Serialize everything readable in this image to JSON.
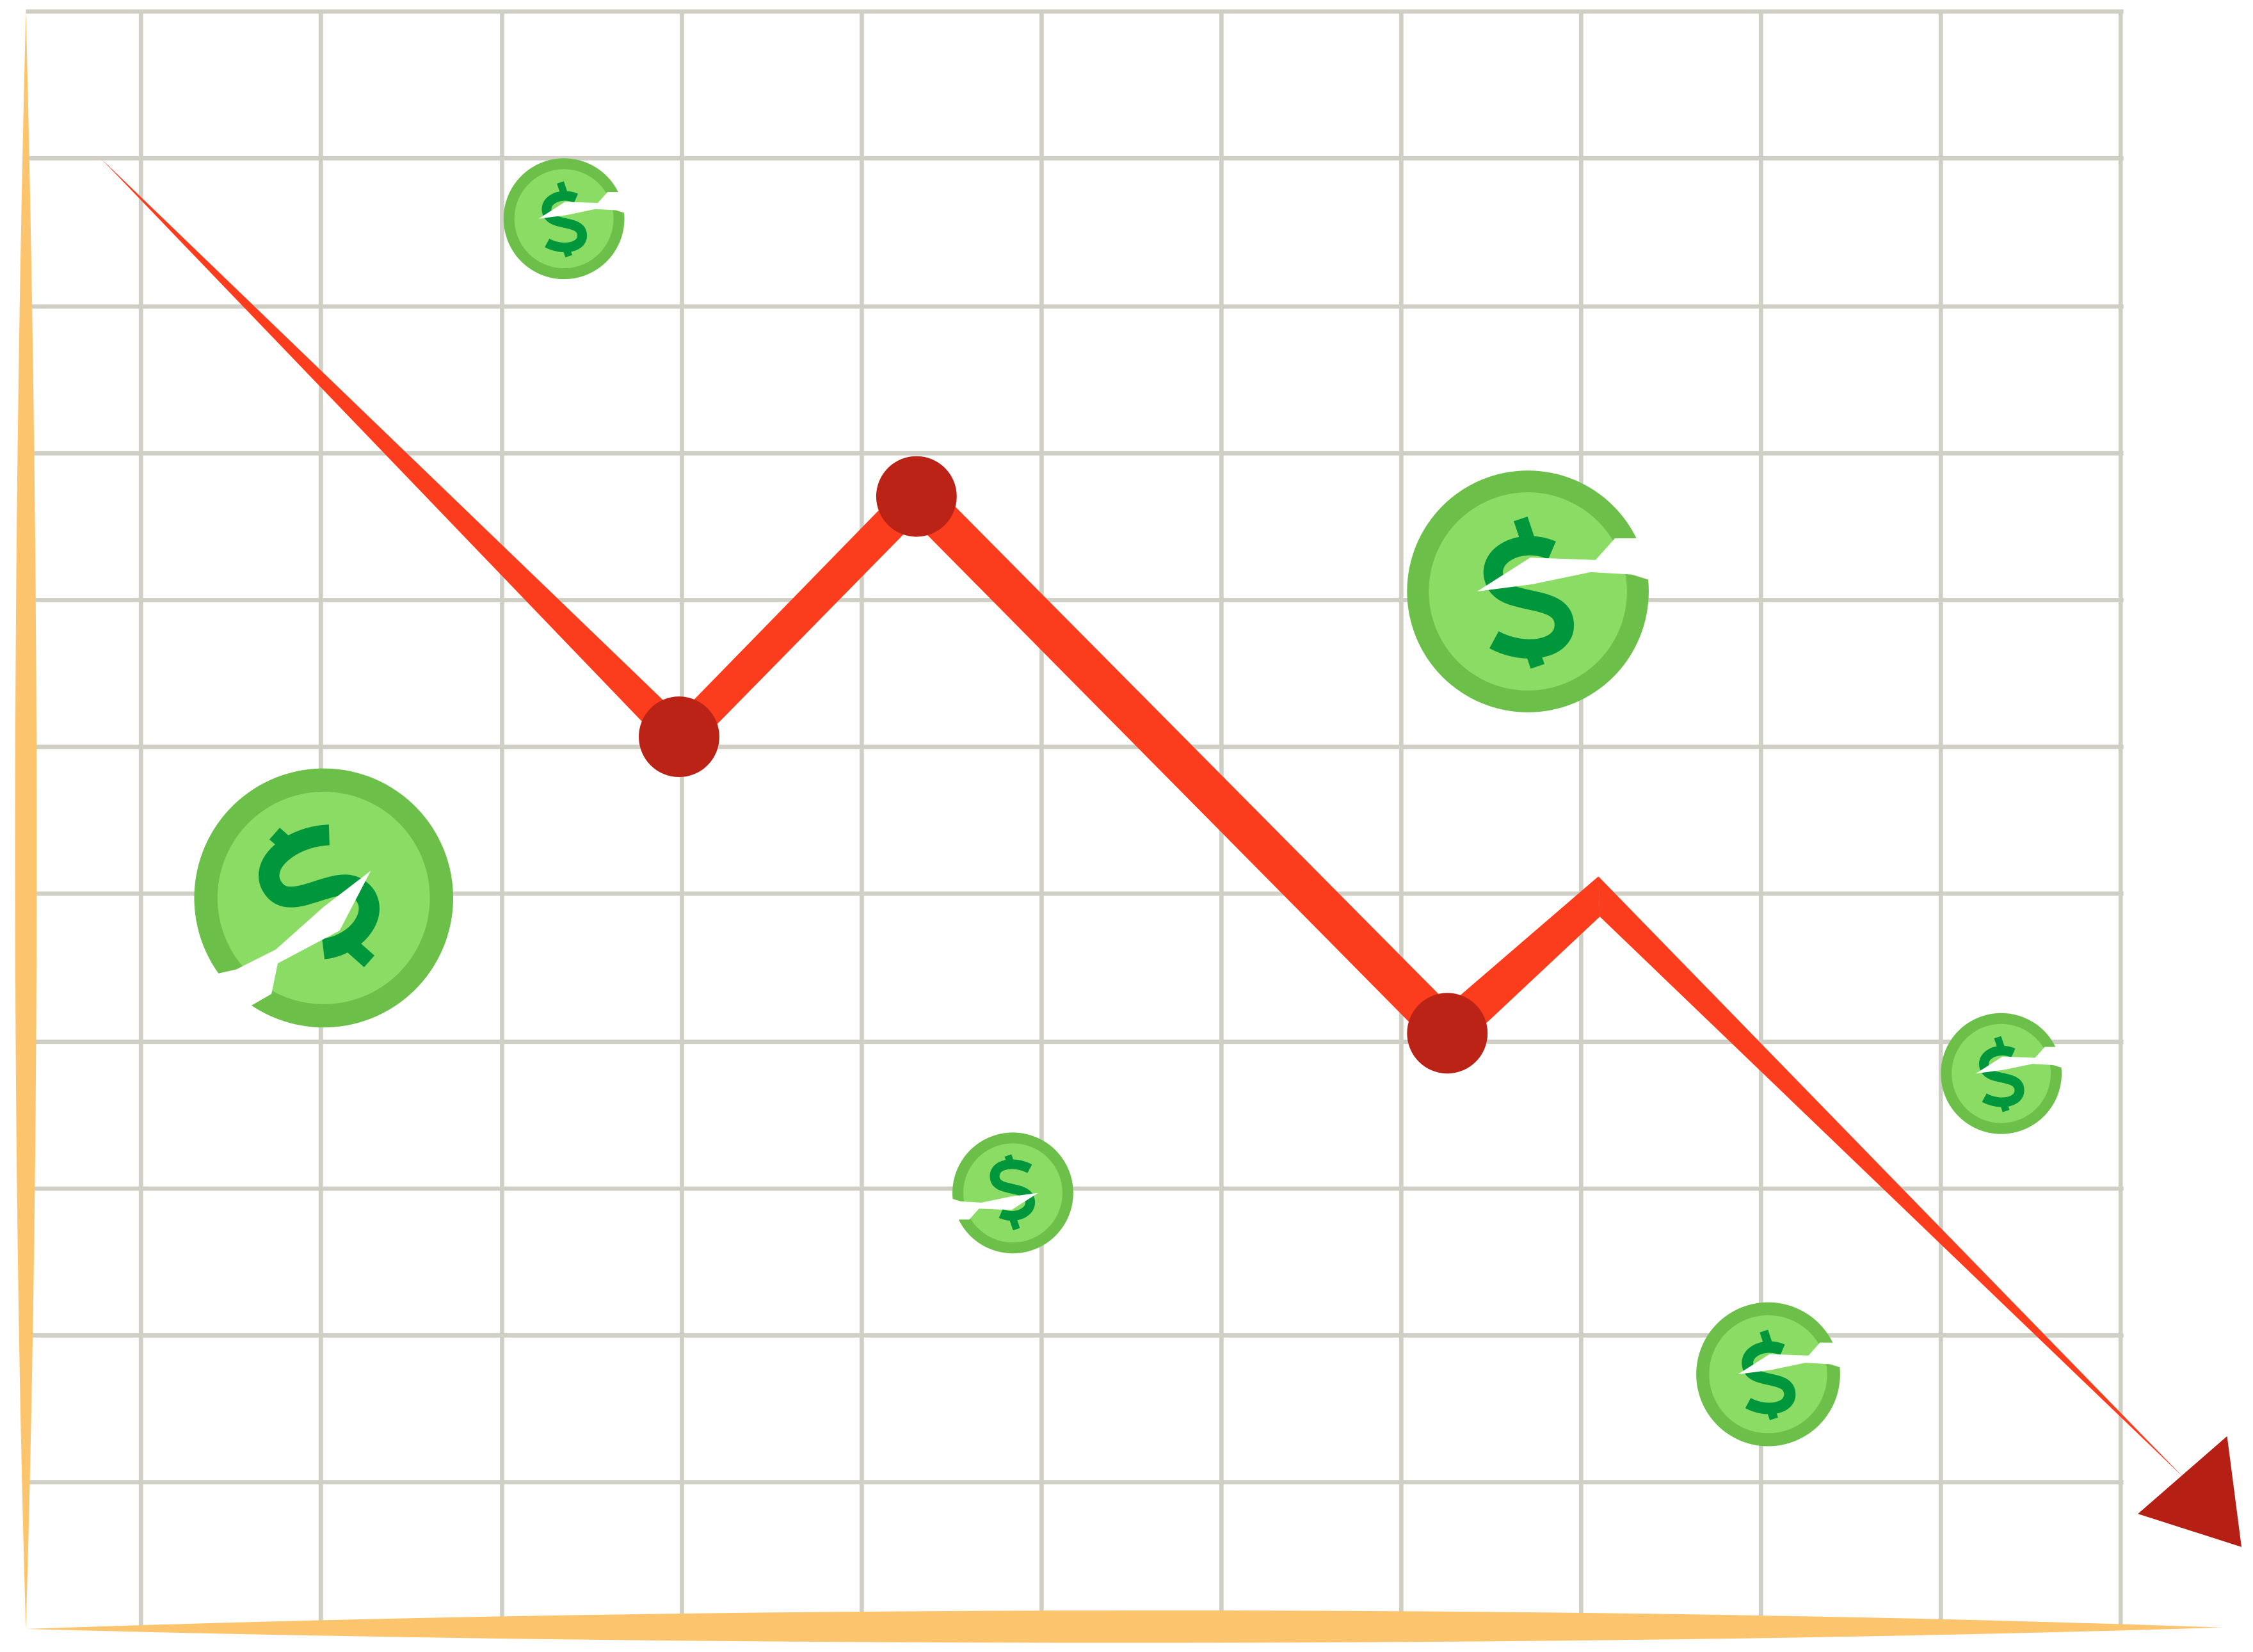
{
  "illustration": {
    "colors": {
      "background": "#ffffff",
      "grid": "#cfcfc6",
      "axis": "#fcc56d",
      "trend_line": "#fb3d1e",
      "markers": "#ba2315",
      "arrow_head": "#b51f14",
      "coin_rim": "#6cc04a",
      "coin_face": "#8adc65",
      "dollar_sign": "#00973c",
      "crack": "#ffffff"
    },
    "icons": {
      "coins": "broken-dollar-coin-icon",
      "arrow": "downward-arrow-head-icon"
    }
  }
}
